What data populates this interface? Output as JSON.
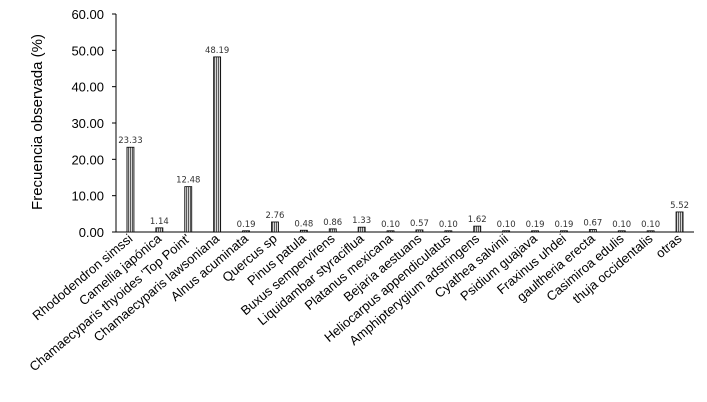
{
  "chart_data": {
    "type": "bar",
    "title": "",
    "xlabel": "",
    "ylabel": "Frecuencia observada (%)",
    "ylim": [
      0,
      60
    ],
    "yticks": [
      "0.00",
      "10.00",
      "20.00",
      "30.00",
      "40.00",
      "50.00",
      "60.00"
    ],
    "grid": false,
    "categories": [
      "Rhododendron simssi",
      "Camellia japónica",
      "Chamaecyparis thyoides 'Top Point'",
      "Chamaecyparis lawsoniana",
      "Alnus acuminata",
      "Quercus sp",
      "Pinus patula",
      "Buxus sempervirens",
      "Liquidambar styraciflua",
      "Platanus mexicana",
      "Bejaria aestuans",
      "Heliocarpus appendiculatus",
      "Amphipterygium adstringens",
      "Cyathea salvinii",
      "Psidium guajava",
      "Fraxinus uhdei",
      "gaultheria erecta",
      "Casimiroa edulis",
      "thuja occidentalis",
      "otras"
    ],
    "values": [
      23.33,
      1.14,
      12.48,
      48.19,
      0.19,
      2.76,
      0.48,
      0.86,
      1.33,
      0.1,
      0.57,
      0.1,
      1.62,
      0.1,
      0.19,
      0.19,
      0.67,
      0.1,
      0.1,
      5.52
    ],
    "data_labels": [
      "23.33",
      "1.14",
      "12.48",
      "48.19",
      "0.19",
      "2.76",
      "0.48",
      "0.86",
      "1.33",
      "0.10",
      "0.57",
      "0.10",
      "1.62",
      "0.10",
      "0.19",
      "0.19",
      "0.67",
      "0.10",
      "0.10",
      "5.52"
    ],
    "colors": {
      "bar_fill": "#d6d6d6",
      "bar_stroke": "#000000",
      "bar_hatch": "#5a5a5a"
    }
  }
}
